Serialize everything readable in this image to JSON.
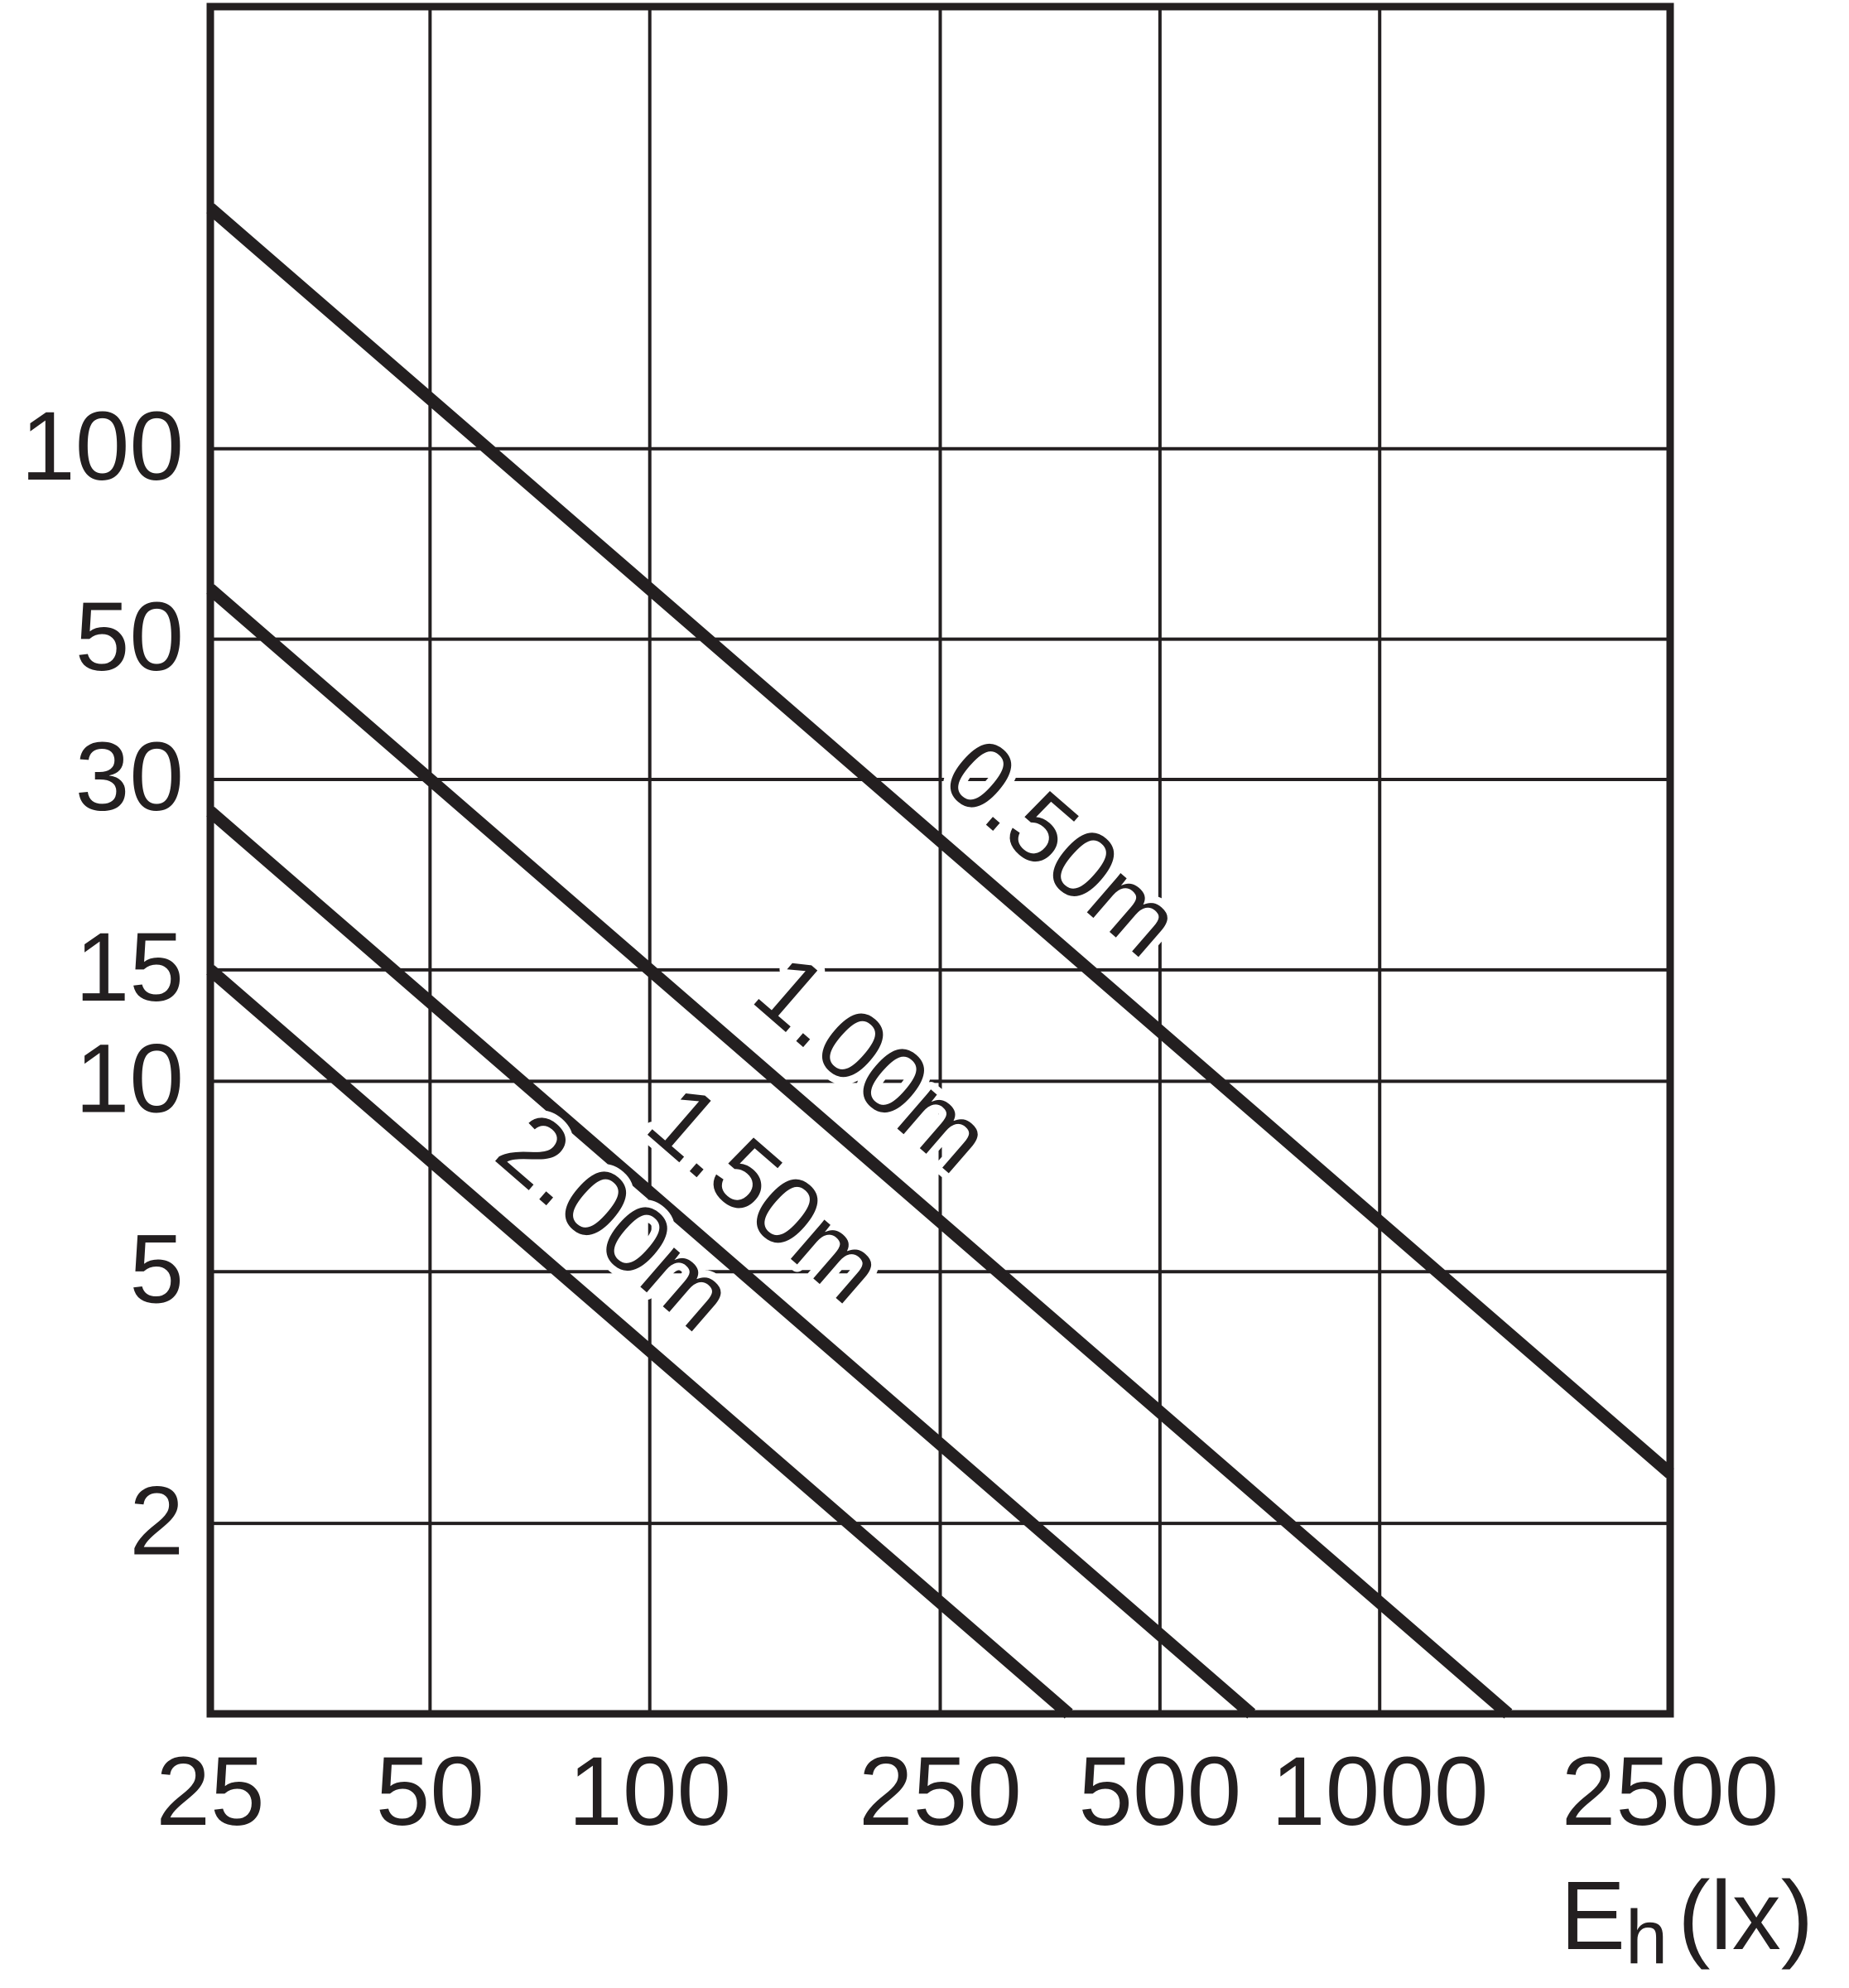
{
  "chart_data": {
    "type": "line",
    "xlabel": {
      "main": "E",
      "sub": "h",
      "unit": "(lx)"
    },
    "x_scale": "log",
    "y_scale": "log",
    "xlim": [
      25,
      2500
    ],
    "ylim": [
      1,
      500
    ],
    "xticks": [
      25,
      50,
      100,
      250,
      500,
      1000,
      2500
    ],
    "yticks": [
      2,
      5,
      10,
      15,
      30,
      50,
      100
    ],
    "grid": true,
    "series": [
      {
        "name": "0.50m",
        "color": "#231f20",
        "x": [
          25,
          2500
        ],
        "values": [
          240,
          2.4
        ]
      },
      {
        "name": "1.00m",
        "color": "#231f20",
        "x": [
          25,
          1500
        ],
        "values": [
          60,
          1
        ]
      },
      {
        "name": "1.50m",
        "color": "#231f20",
        "x": [
          25,
          667
        ],
        "values": [
          26.7,
          1
        ]
      },
      {
        "name": "2.00m",
        "color": "#231f20",
        "x": [
          25,
          375
        ],
        "values": [
          15,
          1
        ]
      }
    ]
  }
}
